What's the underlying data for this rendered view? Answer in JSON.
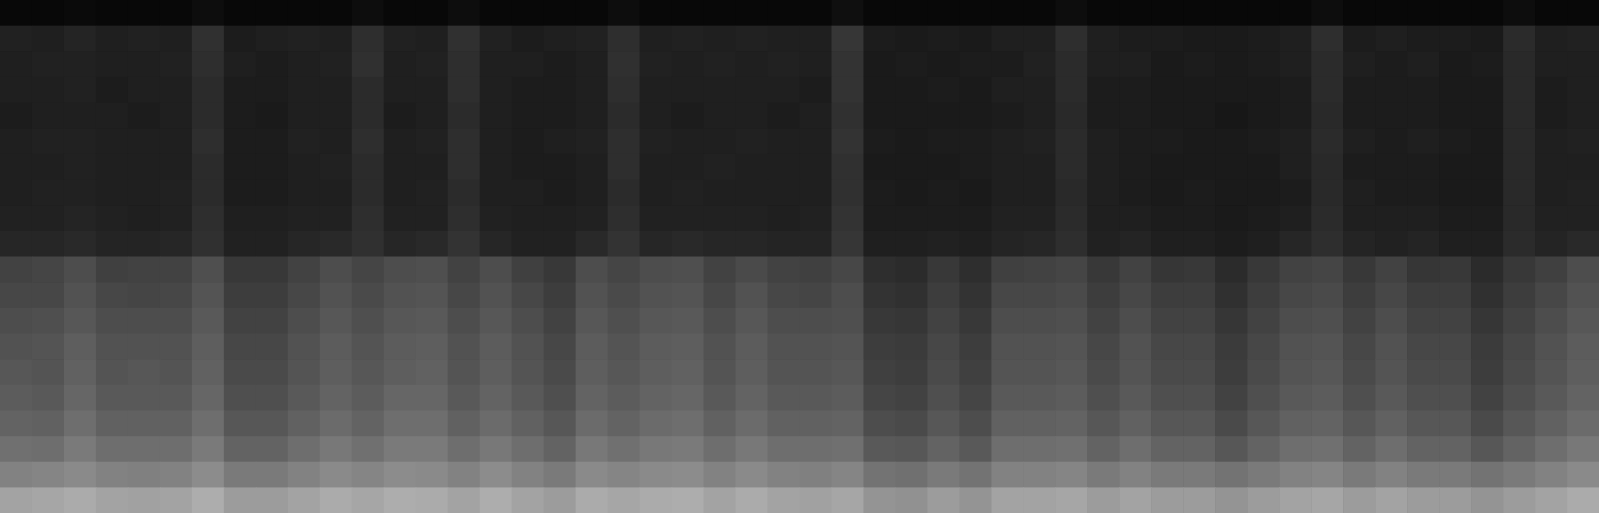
{
  "chart_data": {
    "type": "heatmap",
    "tick_labels": false,
    "color_range": [
      0,
      100
    ],
    "cells": [
      [
        3,
        3,
        4,
        3,
        3,
        3,
        5,
        3,
        3,
        3,
        3,
        5,
        3,
        3,
        5,
        3,
        3,
        3,
        3,
        5,
        3,
        3,
        3,
        3,
        3,
        3,
        6,
        3,
        3,
        3,
        3,
        3,
        3,
        5,
        3,
        3,
        3,
        3,
        3,
        3,
        3,
        5,
        3,
        3,
        3,
        3,
        3,
        5,
        3,
        3
      ],
      [
        13,
        12,
        14,
        12,
        13,
        12,
        19,
        11,
        12,
        13,
        12,
        18,
        13,
        12,
        19,
        13,
        11,
        12,
        13,
        18,
        12,
        13,
        12,
        13,
        12,
        12,
        21,
        11,
        10,
        11,
        10,
        12,
        12,
        18,
        12,
        11,
        11,
        10,
        10,
        11,
        12,
        18,
        11,
        12,
        11,
        11,
        10,
        17,
        12,
        13
      ],
      [
        12,
        13,
        13,
        12,
        12,
        13,
        18,
        12,
        11,
        12,
        13,
        19,
        12,
        13,
        18,
        12,
        12,
        11,
        12,
        19,
        13,
        12,
        13,
        12,
        13,
        12,
        20,
        10,
        11,
        10,
        11,
        11,
        13,
        17,
        12,
        12,
        10,
        11,
        10,
        11,
        12,
        17,
        12,
        11,
        12,
        10,
        11,
        16,
        12,
        12
      ],
      [
        12,
        12,
        13,
        11,
        12,
        12,
        17,
        11,
        11,
        12,
        12,
        17,
        12,
        12,
        18,
        12,
        11,
        11,
        12,
        18,
        12,
        12,
        12,
        12,
        12,
        11,
        20,
        10,
        10,
        11,
        10,
        12,
        12,
        17,
        11,
        11,
        10,
        10,
        10,
        10,
        11,
        17,
        11,
        11,
        11,
        10,
        10,
        16,
        11,
        12
      ],
      [
        11,
        12,
        12,
        12,
        11,
        12,
        17,
        11,
        10,
        12,
        12,
        17,
        11,
        12,
        17,
        12,
        11,
        11,
        12,
        17,
        12,
        11,
        12,
        12,
        11,
        12,
        19,
        10,
        10,
        10,
        10,
        11,
        12,
        16,
        11,
        11,
        10,
        10,
        9,
        10,
        11,
        16,
        11,
        11,
        11,
        10,
        10,
        16,
        11,
        12
      ],
      [
        12,
        13,
        13,
        12,
        12,
        12,
        18,
        11,
        11,
        13,
        12,
        18,
        12,
        13,
        18,
        12,
        11,
        12,
        13,
        18,
        13,
        12,
        12,
        13,
        12,
        12,
        20,
        11,
        10,
        11,
        11,
        12,
        13,
        17,
        12,
        11,
        11,
        10,
        10,
        11,
        12,
        17,
        12,
        11,
        12,
        11,
        10,
        16,
        12,
        13
      ],
      [
        12,
        12,
        13,
        12,
        12,
        12,
        17,
        11,
        11,
        12,
        13,
        17,
        12,
        12,
        18,
        12,
        11,
        11,
        12,
        18,
        12,
        12,
        13,
        12,
        12,
        12,
        19,
        10,
        10,
        10,
        11,
        12,
        12,
        17,
        12,
        11,
        10,
        10,
        10,
        10,
        12,
        16,
        11,
        11,
        11,
        10,
        10,
        16,
        12,
        12
      ],
      [
        12,
        13,
        13,
        12,
        12,
        13,
        17,
        11,
        11,
        12,
        12,
        17,
        12,
        13,
        17,
        12,
        12,
        11,
        12,
        17,
        12,
        13,
        12,
        12,
        12,
        12,
        19,
        11,
        10,
        11,
        10,
        12,
        12,
        16,
        12,
        11,
        10,
        11,
        10,
        10,
        11,
        16,
        12,
        11,
        11,
        10,
        10,
        16,
        12,
        13
      ],
      [
        13,
        13,
        14,
        13,
        12,
        13,
        18,
        12,
        12,
        13,
        13,
        18,
        13,
        13,
        18,
        13,
        12,
        12,
        13,
        18,
        13,
        13,
        13,
        13,
        12,
        13,
        20,
        11,
        11,
        11,
        11,
        13,
        13,
        17,
        12,
        12,
        11,
        11,
        10,
        11,
        12,
        17,
        12,
        12,
        12,
        11,
        11,
        16,
        13,
        13
      ],
      [
        15,
        15,
        16,
        14,
        14,
        15,
        19,
        13,
        13,
        15,
        16,
        19,
        15,
        16,
        20,
        15,
        13,
        13,
        16,
        20,
        15,
        16,
        15,
        15,
        14,
        14,
        21,
        12,
        12,
        13,
        12,
        14,
        15,
        18,
        13,
        14,
        12,
        12,
        11,
        12,
        15,
        18,
        14,
        13,
        14,
        12,
        12,
        17,
        14,
        16
      ],
      [
        26,
        27,
        30,
        25,
        26,
        26,
        31,
        22,
        22,
        26,
        30,
        27,
        30,
        31,
        26,
        30,
        25,
        22,
        30,
        27,
        30,
        31,
        26,
        29,
        26,
        25,
        28,
        18,
        17,
        22,
        18,
        25,
        26,
        27,
        22,
        26,
        21,
        22,
        17,
        22,
        26,
        27,
        22,
        26,
        21,
        22,
        17,
        22,
        25,
        30
      ],
      [
        28,
        28,
        32,
        28,
        27,
        28,
        33,
        24,
        24,
        28,
        32,
        29,
        32,
        33,
        28,
        32,
        28,
        24,
        32,
        29,
        32,
        33,
        28,
        32,
        28,
        27,
        30,
        20,
        19,
        24,
        20,
        28,
        28,
        29,
        24,
        28,
        24,
        24,
        19,
        24,
        28,
        29,
        24,
        28,
        24,
        24,
        19,
        24,
        28,
        32
      ],
      [
        30,
        31,
        34,
        30,
        30,
        30,
        35,
        26,
        26,
        30,
        34,
        31,
        34,
        35,
        30,
        34,
        30,
        26,
        34,
        31,
        34,
        35,
        30,
        34,
        30,
        30,
        31,
        22,
        21,
        26,
        22,
        30,
        30,
        31,
        26,
        30,
        26,
        26,
        21,
        26,
        30,
        31,
        26,
        30,
        26,
        26,
        21,
        26,
        30,
        34
      ],
      [
        32,
        33,
        37,
        32,
        32,
        32,
        37,
        28,
        28,
        32,
        36,
        33,
        36,
        37,
        32,
        36,
        32,
        28,
        36,
        33,
        36,
        37,
        32,
        36,
        32,
        32,
        33,
        24,
        23,
        28,
        24,
        32,
        32,
        33,
        28,
        32,
        28,
        28,
        23,
        28,
        32,
        33,
        28,
        32,
        28,
        28,
        23,
        28,
        32,
        36
      ],
      [
        34,
        33,
        38,
        33,
        34,
        33,
        38,
        29,
        29,
        33,
        37,
        34,
        37,
        38,
        33,
        37,
        33,
        29,
        37,
        34,
        37,
        38,
        33,
        37,
        33,
        33,
        34,
        25,
        24,
        29,
        25,
        33,
        33,
        34,
        29,
        33,
        29,
        29,
        24,
        29,
        33,
        34,
        29,
        33,
        29,
        29,
        24,
        29,
        33,
        37
      ],
      [
        36,
        35,
        40,
        35,
        35,
        35,
        40,
        31,
        31,
        35,
        39,
        36,
        40,
        40,
        35,
        39,
        35,
        31,
        39,
        36,
        39,
        40,
        35,
        39,
        35,
        35,
        36,
        27,
        26,
        31,
        27,
        35,
        35,
        36,
        31,
        35,
        31,
        31,
        26,
        31,
        35,
        36,
        31,
        35,
        31,
        31,
        26,
        31,
        35,
        39
      ],
      [
        39,
        38,
        43,
        38,
        38,
        38,
        43,
        34,
        34,
        38,
        42,
        39,
        43,
        43,
        38,
        42,
        38,
        34,
        42,
        39,
        42,
        43,
        38,
        42,
        38,
        38,
        39,
        30,
        29,
        34,
        30,
        38,
        38,
        39,
        34,
        38,
        34,
        34,
        29,
        34,
        38,
        39,
        34,
        38,
        34,
        34,
        29,
        34,
        38,
        42
      ],
      [
        44,
        43,
        48,
        43,
        43,
        43,
        48,
        39,
        39,
        43,
        47,
        44,
        48,
        48,
        43,
        47,
        43,
        39,
        47,
        44,
        47,
        48,
        43,
        47,
        43,
        43,
        44,
        35,
        34,
        39,
        35,
        43,
        43,
        44,
        39,
        43,
        39,
        39,
        34,
        39,
        43,
        44,
        39,
        43,
        39,
        39,
        34,
        39,
        43,
        47
      ],
      [
        51,
        52,
        54,
        51,
        50,
        51,
        55,
        48,
        48,
        51,
        54,
        52,
        55,
        54,
        51,
        55,
        51,
        48,
        54,
        52,
        54,
        55,
        51,
        54,
        51,
        50,
        52,
        45,
        44,
        48,
        45,
        51,
        51,
        52,
        48,
        51,
        48,
        48,
        45,
        48,
        51,
        52,
        48,
        51,
        48,
        48,
        45,
        48,
        51,
        54
      ],
      [
        64,
        65,
        67,
        64,
        63,
        64,
        68,
        61,
        61,
        64,
        67,
        65,
        68,
        67,
        64,
        68,
        64,
        61,
        67,
        65,
        67,
        68,
        64,
        67,
        64,
        63,
        65,
        58,
        57,
        61,
        58,
        64,
        64,
        65,
        61,
        64,
        61,
        61,
        58,
        61,
        64,
        65,
        61,
        64,
        61,
        61,
        58,
        61,
        64,
        67
      ]
    ]
  }
}
